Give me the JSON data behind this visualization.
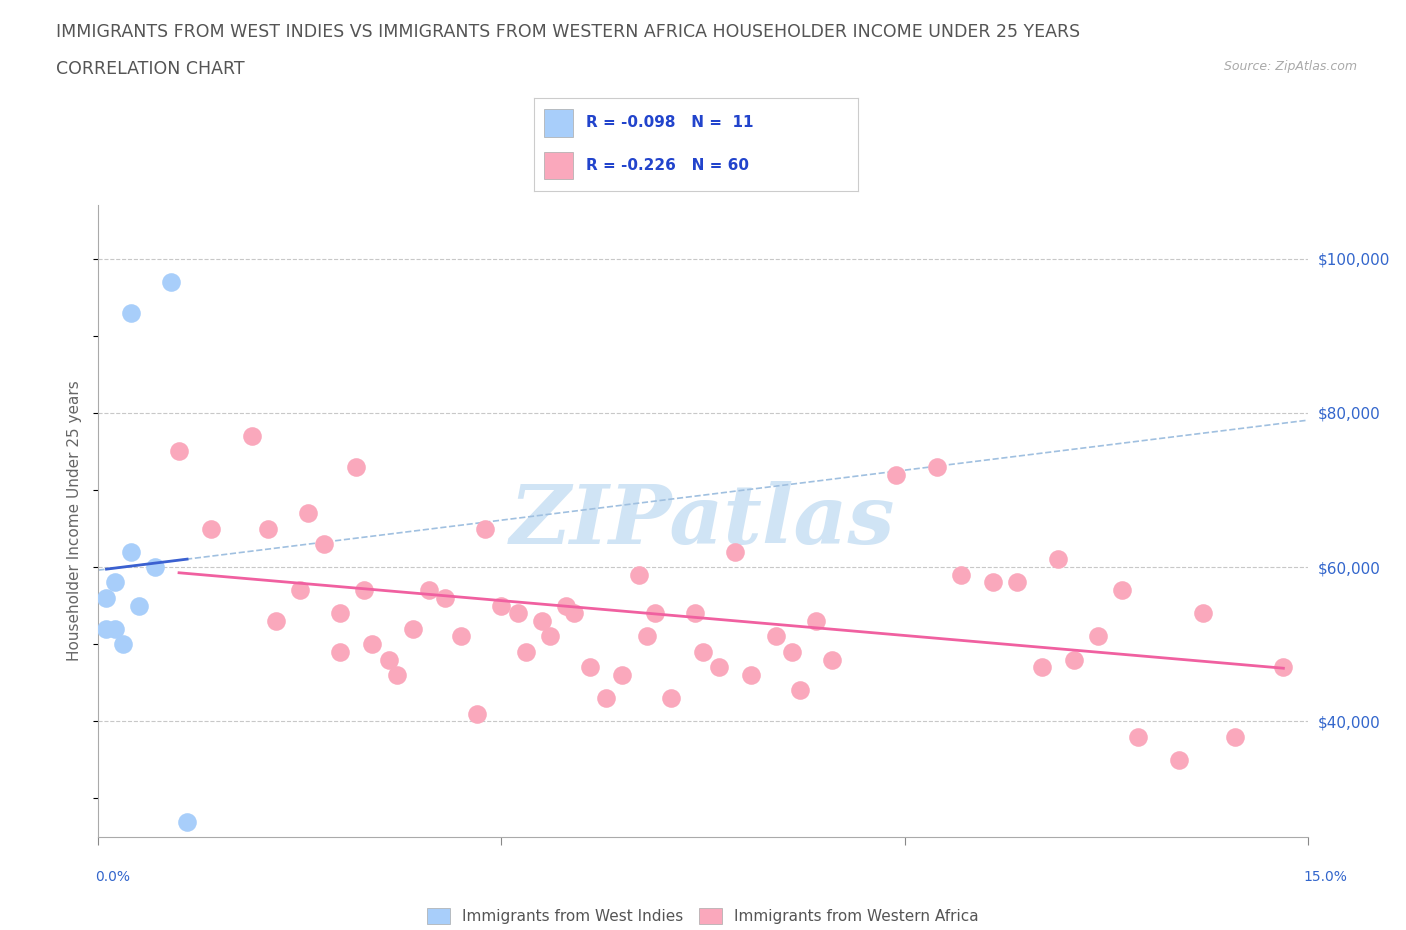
{
  "title_line1": "IMMIGRANTS FROM WEST INDIES VS IMMIGRANTS FROM WESTERN AFRICA HOUSEHOLDER INCOME UNDER 25 YEARS",
  "title_line2": "CORRELATION CHART",
  "source": "Source: ZipAtlas.com",
  "ylabel": "Householder Income Under 25 years",
  "xlim": [
    0.0,
    0.15
  ],
  "ylim": [
    25000,
    107000
  ],
  "ytick_values": [
    40000,
    60000,
    80000,
    100000
  ],
  "ytick_labels": [
    "$40,000",
    "$60,000",
    "$80,000",
    "$100,000"
  ],
  "west_indies_color": "#A8CEFA",
  "western_africa_color": "#FAA8BC",
  "west_indies_line_color": "#3A60D0",
  "western_africa_line_color": "#F060A0",
  "dashed_line_color": "#A0C0E0",
  "watermark_color": "#D0E4F5",
  "background_color": "#FFFFFF",
  "grid_color": "#C8C8C8",
  "west_indies_x": [
    0.002,
    0.004,
    0.009,
    0.004,
    0.005,
    0.007,
    0.002,
    0.003,
    0.001,
    0.001,
    0.011
  ],
  "west_indies_y": [
    58000,
    93000,
    97000,
    62000,
    55000,
    60000,
    52000,
    50000,
    52000,
    56000,
    27000
  ],
  "western_africa_x": [
    0.01,
    0.014,
    0.019,
    0.021,
    0.022,
    0.025,
    0.026,
    0.028,
    0.03,
    0.03,
    0.032,
    0.033,
    0.034,
    0.036,
    0.037,
    0.039,
    0.041,
    0.043,
    0.045,
    0.047,
    0.048,
    0.05,
    0.052,
    0.053,
    0.055,
    0.056,
    0.058,
    0.059,
    0.061,
    0.063,
    0.065,
    0.067,
    0.068,
    0.069,
    0.071,
    0.074,
    0.075,
    0.077,
    0.079,
    0.081,
    0.084,
    0.086,
    0.087,
    0.089,
    0.091,
    0.099,
    0.104,
    0.107,
    0.111,
    0.114,
    0.117,
    0.119,
    0.121,
    0.124,
    0.127,
    0.129,
    0.134,
    0.137,
    0.141,
    0.147
  ],
  "western_africa_y": [
    75000,
    65000,
    77000,
    65000,
    53000,
    57000,
    67000,
    63000,
    49000,
    54000,
    73000,
    57000,
    50000,
    48000,
    46000,
    52000,
    57000,
    56000,
    51000,
    41000,
    65000,
    55000,
    54000,
    49000,
    53000,
    51000,
    55000,
    54000,
    47000,
    43000,
    46000,
    59000,
    51000,
    54000,
    43000,
    54000,
    49000,
    47000,
    62000,
    46000,
    51000,
    49000,
    44000,
    53000,
    48000,
    72000,
    73000,
    59000,
    58000,
    58000,
    47000,
    61000,
    48000,
    51000,
    57000,
    38000,
    35000,
    54000,
    38000,
    47000
  ]
}
